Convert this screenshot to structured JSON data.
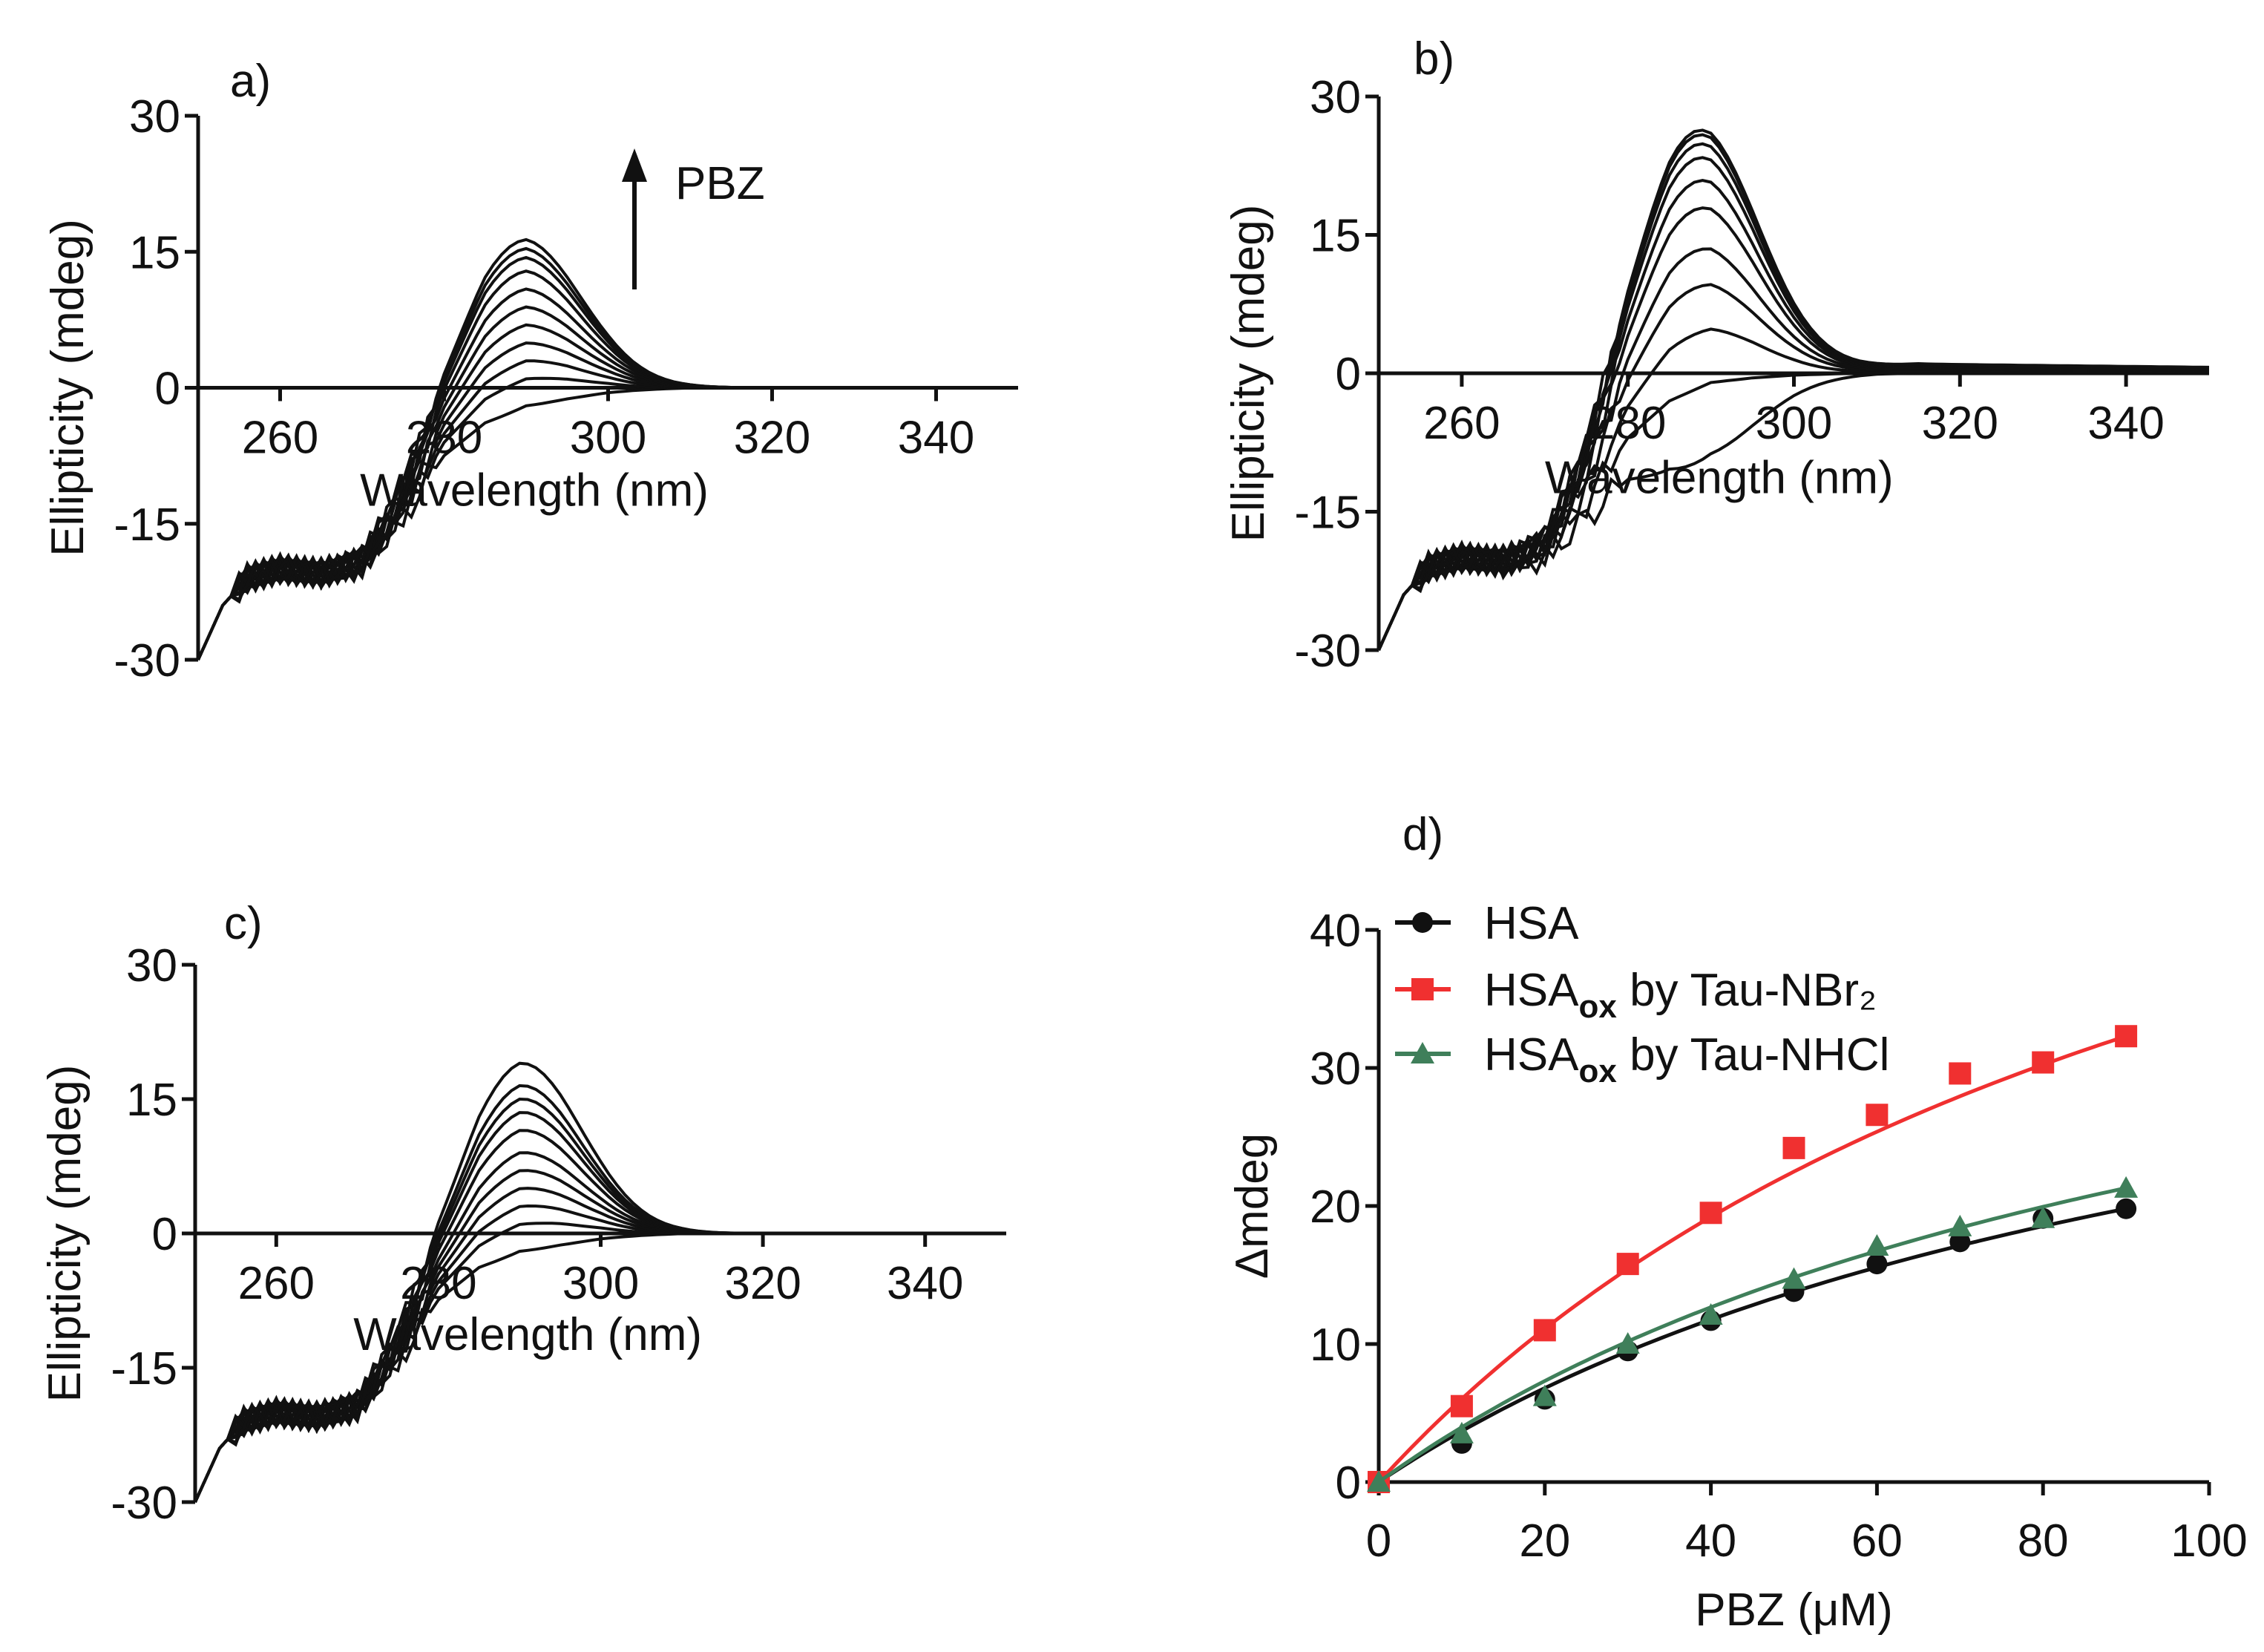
{
  "chart_data": [
    {
      "type": "line",
      "panel_label": "a)",
      "xlabel": "Wavelength (nm)",
      "ylabel": "Ellipticity (mdeg)",
      "xlim": [
        250,
        350
      ],
      "ylim": [
        -30,
        30
      ],
      "xticks": [
        "260",
        "280",
        "300",
        "320",
        "340"
      ],
      "yticks": [
        "30",
        "15",
        "0",
        "-15",
        "-30"
      ],
      "annotation": "PBZ",
      "peak_wavelength": 289,
      "peak_amplitudes": [
        -1,
        2,
        4,
        6,
        8,
        10,
        12,
        14,
        15.5,
        16.5,
        17.5
      ],
      "tail": 0
    },
    {
      "type": "line",
      "panel_label": "b)",
      "xlabel": "Wavelength (nm)",
      "ylabel": "Ellipticity (mdeg)",
      "xlim": [
        250,
        350
      ],
      "ylim": [
        -30,
        30
      ],
      "xticks": [
        "260",
        "280",
        "300",
        "320",
        "340"
      ],
      "yticks": [
        "30",
        "15",
        "0",
        "-15",
        "-30"
      ],
      "peak_wavelength": 288,
      "peak_amplitudes": [
        -8,
        0,
        6,
        11,
        15,
        19.5,
        22.5,
        25,
        26.5,
        27.5,
        28
      ],
      "tail": 1
    },
    {
      "type": "line",
      "panel_label": "c)",
      "xlabel": "Wavelength (nm)",
      "ylabel": "Ellipticity (mdeg)",
      "xlim": [
        250,
        350
      ],
      "ylim": [
        -30,
        30
      ],
      "xticks": [
        "260",
        "280",
        "300",
        "320",
        "340"
      ],
      "yticks": [
        "30",
        "15",
        "0",
        "-15",
        "-30"
      ],
      "peak_wavelength": 290,
      "peak_amplitudes": [
        -1,
        2,
        4,
        6,
        8,
        10,
        12.5,
        14.5,
        16,
        17.5,
        20
      ],
      "tail": 0
    },
    {
      "type": "scatter",
      "panel_label": "d)",
      "xlabel": "PBZ (μM)",
      "ylabel": "Δmdeg",
      "xlim": [
        0,
        100
      ],
      "ylim": [
        0,
        40
      ],
      "xticks": [
        "0",
        "20",
        "40",
        "60",
        "80",
        "100"
      ],
      "yticks": [
        "40",
        "30",
        "20",
        "10",
        "0"
      ],
      "x": [
        0,
        10,
        20,
        30,
        40,
        50,
        60,
        70,
        80,
        90
      ],
      "series": [
        {
          "name": "HSA",
          "name_sub": "",
          "name_rest": "",
          "marker": "circle",
          "color": "#111111",
          "values": [
            0,
            2.8,
            6.0,
            9.5,
            11.7,
            13.8,
            15.8,
            17.4,
            19.1,
            19.8
          ]
        },
        {
          "name": "HSA",
          "name_sub": "ox",
          "name_rest": " by Tau-NBr₂",
          "marker": "square",
          "color": "#f03030",
          "values": [
            0,
            5.5,
            11.0,
            15.8,
            19.5,
            24.2,
            26.6,
            29.6,
            30.4,
            32.3
          ]
        },
        {
          "name": "HSA",
          "name_sub": "ox",
          "name_rest": " by Tau-NHCl",
          "marker": "triangle",
          "color": "#3f7f5a",
          "values": [
            0,
            3.5,
            6.2,
            10.0,
            12.1,
            14.7,
            17.1,
            18.5,
            19.1,
            21.3
          ]
        }
      ],
      "legend": "top-left"
    }
  ]
}
